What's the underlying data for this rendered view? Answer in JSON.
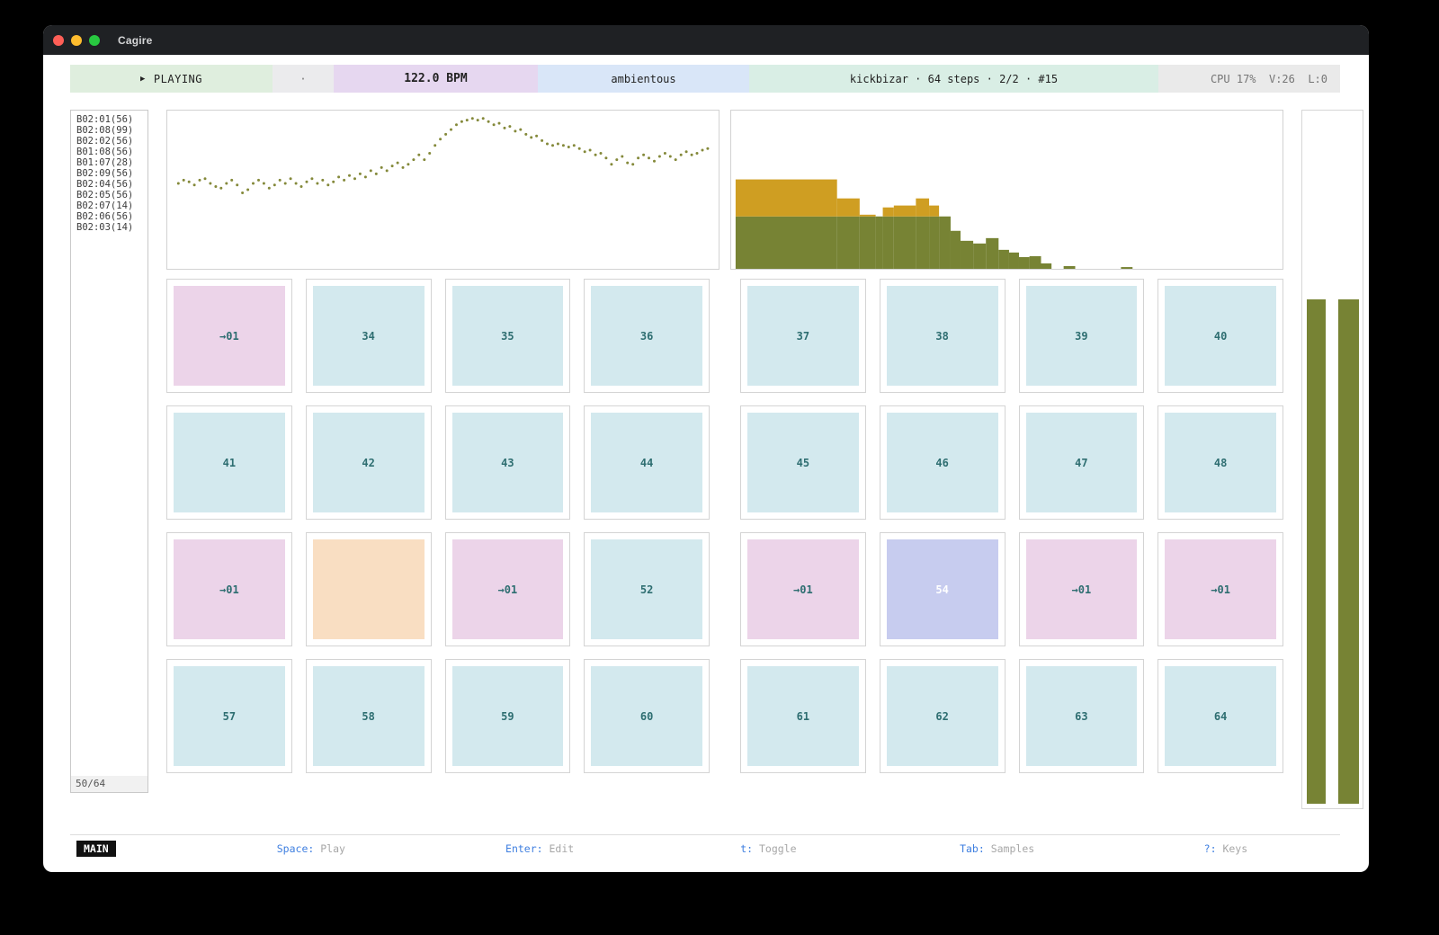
{
  "window": {
    "title": "Cagire"
  },
  "toolbar": {
    "play_icon": "▶",
    "transport_label": "PLAYING",
    "separator_dot": "·",
    "bpm": "122.0 BPM",
    "project": "ambientous",
    "pattern_info": "kickbizar · 64 steps · 2/2 · #15",
    "stats": "CPU 17%  V:26  L:0"
  },
  "sidebar": {
    "items": [
      "B02:01(56)",
      "B02:08(99)",
      "B02:02(56)",
      "B01:08(56)",
      "B01:07(28)",
      "B02:09(56)",
      "B02:04(56)",
      "B02:05(56)",
      "B02:07(14)",
      "B02:06(56)",
      "B02:03(14)"
    ],
    "counter": "50/64"
  },
  "chart_data": [
    {
      "type": "scatter",
      "name": "waveform-dots",
      "color": "#84893a",
      "x_start": 0.02,
      "x_step": 0.0097,
      "y": [
        0.46,
        0.44,
        0.45,
        0.47,
        0.44,
        0.43,
        0.46,
        0.48,
        0.49,
        0.46,
        0.44,
        0.47,
        0.52,
        0.5,
        0.46,
        0.44,
        0.46,
        0.49,
        0.47,
        0.44,
        0.46,
        0.43,
        0.46,
        0.48,
        0.45,
        0.43,
        0.46,
        0.44,
        0.47,
        0.45,
        0.42,
        0.44,
        0.41,
        0.43,
        0.4,
        0.42,
        0.38,
        0.4,
        0.36,
        0.38,
        0.35,
        0.33,
        0.36,
        0.34,
        0.31,
        0.28,
        0.31,
        0.27,
        0.22,
        0.18,
        0.15,
        0.12,
        0.09,
        0.07,
        0.06,
        0.05,
        0.06,
        0.05,
        0.07,
        0.09,
        0.08,
        0.11,
        0.1,
        0.13,
        0.12,
        0.15,
        0.17,
        0.16,
        0.19,
        0.21,
        0.22,
        0.21,
        0.22,
        0.23,
        0.22,
        0.24,
        0.26,
        0.25,
        0.28,
        0.27,
        0.3,
        0.34,
        0.31,
        0.29,
        0.33,
        0.34,
        0.3,
        0.28,
        0.3,
        0.32,
        0.29,
        0.27,
        0.29,
        0.31,
        0.28,
        0.26,
        0.28,
        0.27,
        0.25,
        0.24
      ]
    },
    {
      "type": "bar",
      "name": "sample-length-histogram",
      "colors": {
        "green": "#778334",
        "gold": "#cf9e22"
      },
      "bars_note": "each bar = [x_frac, width_frac, green_height_frac, gold_height_frac]",
      "bars": [
        [
          0.008,
          0.184,
          0.331,
          0.234
        ],
        [
          0.192,
          0.041,
          0.331,
          0.114
        ],
        [
          0.233,
          0.029,
          0.331,
          0.011
        ],
        [
          0.262,
          0.013,
          0.331,
          0.0
        ],
        [
          0.275,
          0.02,
          0.331,
          0.057
        ],
        [
          0.295,
          0.04,
          0.331,
          0.069
        ],
        [
          0.335,
          0.024,
          0.331,
          0.114
        ],
        [
          0.359,
          0.018,
          0.331,
          0.069
        ],
        [
          0.377,
          0.021,
          0.331,
          0.0
        ],
        [
          0.398,
          0.018,
          0.24,
          0.0
        ],
        [
          0.416,
          0.023,
          0.177,
          0.0
        ],
        [
          0.439,
          0.023,
          0.16,
          0.0
        ],
        [
          0.462,
          0.023,
          0.194,
          0.0
        ],
        [
          0.485,
          0.019,
          0.12,
          0.0
        ],
        [
          0.504,
          0.018,
          0.103,
          0.0
        ],
        [
          0.522,
          0.019,
          0.074,
          0.0
        ],
        [
          0.541,
          0.021,
          0.08,
          0.0
        ],
        [
          0.562,
          0.019,
          0.034,
          0.0
        ],
        [
          0.603,
          0.021,
          0.017,
          0.0
        ],
        [
          0.707,
          0.021,
          0.011,
          0.0
        ]
      ]
    }
  ],
  "grid": {
    "rows": [
      [
        {
          "label": "→01",
          "type": "ref"
        },
        {
          "label": "34",
          "type": "sample"
        },
        {
          "label": "35",
          "type": "sample"
        },
        {
          "label": "36",
          "type": "sample"
        },
        {
          "label": "37",
          "type": "sample"
        },
        {
          "label": "38",
          "type": "sample"
        },
        {
          "label": "39",
          "type": "sample"
        },
        {
          "label": "40",
          "type": "sample"
        }
      ],
      [
        {
          "label": "41",
          "type": "sample"
        },
        {
          "label": "42",
          "type": "sample"
        },
        {
          "label": "43",
          "type": "sample"
        },
        {
          "label": "44",
          "type": "sample"
        },
        {
          "label": "45",
          "type": "sample"
        },
        {
          "label": "46",
          "type": "sample"
        },
        {
          "label": "47",
          "type": "sample"
        },
        {
          "label": "48",
          "type": "sample"
        }
      ],
      [
        {
          "label": "→01",
          "type": "ref"
        },
        {
          "label": "",
          "type": "empty"
        },
        {
          "label": "→01",
          "type": "ref"
        },
        {
          "label": "52",
          "type": "sample"
        },
        {
          "label": "→01",
          "type": "ref"
        },
        {
          "label": "54",
          "type": "active"
        },
        {
          "label": "→01",
          "type": "ref"
        },
        {
          "label": "→01",
          "type": "ref"
        }
      ],
      [
        {
          "label": "57",
          "type": "sample"
        },
        {
          "label": "58",
          "type": "sample"
        },
        {
          "label": "59",
          "type": "sample"
        },
        {
          "label": "60",
          "type": "sample"
        },
        {
          "label": "61",
          "type": "sample"
        },
        {
          "label": "62",
          "type": "sample"
        },
        {
          "label": "63",
          "type": "sample"
        },
        {
          "label": "64",
          "type": "sample"
        }
      ]
    ]
  },
  "meters": {
    "color": "#778334",
    "bars": [
      {
        "fill": 0.723
      },
      {
        "fill": 0.723
      }
    ]
  },
  "statusbar": {
    "mode": "MAIN",
    "shortcuts": [
      {
        "key": "Space",
        "label": "Play"
      },
      {
        "key": "Enter",
        "label": "Edit"
      },
      {
        "key": "t",
        "label": "Toggle"
      },
      {
        "key": "Tab",
        "label": "Samples"
      },
      {
        "key": "?",
        "label": "Keys"
      }
    ]
  },
  "colors": {
    "toolbar_green": "#dfeede",
    "toolbar_purple": "#e6d7f0",
    "toolbar_blue": "#d9e6f8",
    "toolbar_mint": "#d9eee5",
    "pad_pink": "#ecd4e9",
    "pad_teal": "#d3e9ee",
    "pad_orange": "#f9dec2",
    "pad_lavender": "#c7ccef",
    "pad_text": "#2e6e71",
    "olive": "#778334",
    "gold": "#cf9e22",
    "dot_olive": "#84893a",
    "key_blue": "#3f7fe0"
  }
}
